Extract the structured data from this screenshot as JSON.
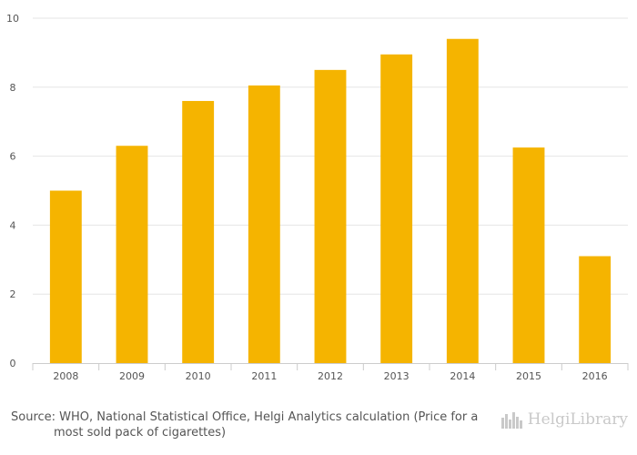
{
  "chart_data": {
    "type": "bar",
    "categories": [
      "2008",
      "2009",
      "2010",
      "2011",
      "2012",
      "2013",
      "2014",
      "2015",
      "2016"
    ],
    "values": [
      5.0,
      6.3,
      7.6,
      8.05,
      8.5,
      8.95,
      9.4,
      6.25,
      3.1
    ],
    "ylim": [
      0,
      10
    ],
    "yticks": [
      0,
      2,
      4,
      6,
      8,
      10
    ],
    "grid": true,
    "legend": "none",
    "colors": {
      "bar": "#f5b400",
      "grid": "#e6e6e6",
      "axis": "#cccccc"
    }
  },
  "footer": {
    "source_line1": "Source: WHO, National Statistical Office, Helgi Analytics calculation (Price for a",
    "source_line2": "most sold pack of cigarettes)",
    "logo_text": "HelgiLibrary",
    "logo_icon": "skyline-icon"
  }
}
